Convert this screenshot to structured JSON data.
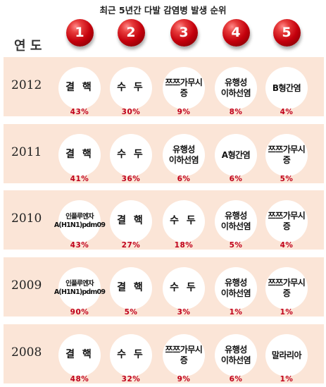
{
  "title": "최근 5년간 다발 감염병 발생 순위",
  "year_header": "연 도",
  "ranks": [
    "1",
    "2",
    "3",
    "4",
    "5"
  ],
  "rows": [
    {
      "year": "2012",
      "items": [
        {
          "name": "결 핵",
          "pct": "43%",
          "style": "big"
        },
        {
          "name": "수 두",
          "pct": "30%",
          "style": "big"
        },
        {
          "name": "쯔쯔가무시증",
          "pct": "9%",
          "style": "normal"
        },
        {
          "name": "유행성\n이하선염",
          "pct": "8%",
          "style": "normal"
        },
        {
          "name": "B형간염",
          "pct": "4%",
          "style": "normal"
        }
      ]
    },
    {
      "year": "2011",
      "items": [
        {
          "name": "결 핵",
          "pct": "41%",
          "style": "big"
        },
        {
          "name": "수 두",
          "pct": "36%",
          "style": "big"
        },
        {
          "name": "유행성\n이하선염",
          "pct": "6%",
          "style": "normal"
        },
        {
          "name": "A형간염",
          "pct": "6%",
          "style": "normal"
        },
        {
          "name": "쯔쯔가무시증",
          "pct": "5%",
          "style": "normal"
        }
      ]
    },
    {
      "year": "2010",
      "items": [
        {
          "name": "인플루엔자\nA(H1N1)pdm09",
          "pct": "43%",
          "style": "tiny"
        },
        {
          "name": "결 핵",
          "pct": "27%",
          "style": "big"
        },
        {
          "name": "수 두",
          "pct": "18%",
          "style": "big"
        },
        {
          "name": "유행성\n이하선염",
          "pct": "5%",
          "style": "normal"
        },
        {
          "name": "쯔쯔가무시증",
          "pct": "4%",
          "style": "normal"
        }
      ]
    },
    {
      "year": "2009",
      "items": [
        {
          "name": "인플루엔자\nA(H1N1)pdm09",
          "pct": "90%",
          "style": "tiny"
        },
        {
          "name": "결 핵",
          "pct": "5%",
          "style": "big"
        },
        {
          "name": "수 두",
          "pct": "3%",
          "style": "big"
        },
        {
          "name": "유행성\n이하선염",
          "pct": "1%",
          "style": "normal"
        },
        {
          "name": "쯔쯔가무시증",
          "pct": "1%",
          "style": "normal"
        }
      ]
    },
    {
      "year": "2008",
      "items": [
        {
          "name": "결 핵",
          "pct": "48%",
          "style": "big"
        },
        {
          "name": "수 두",
          "pct": "32%",
          "style": "big"
        },
        {
          "name": "쯔쯔가무시증",
          "pct": "9%",
          "style": "normal"
        },
        {
          "name": "유행성\n이하선염",
          "pct": "6%",
          "style": "normal"
        },
        {
          "name": "말라리아",
          "pct": "1%",
          "style": "normal"
        }
      ]
    }
  ]
}
